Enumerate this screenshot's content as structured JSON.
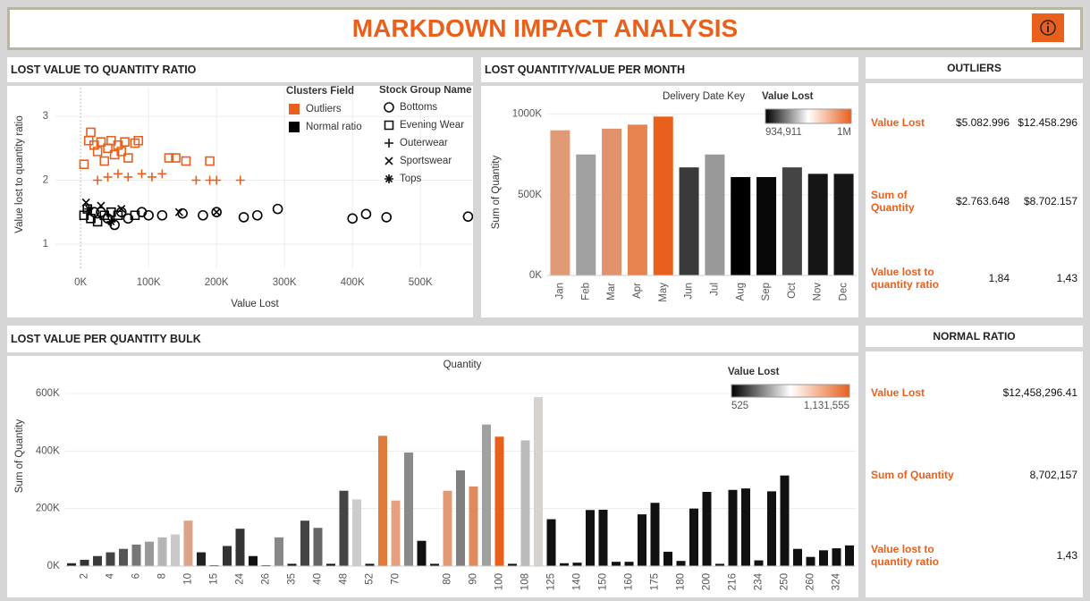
{
  "header": {
    "title": "MARKDOWN IMPACT ANALYSIS"
  },
  "chart_data": [
    {
      "type": "scatter",
      "title": "LOST VALUE TO QUANTITY RATIO",
      "xlabel": "Value Lost",
      "ylabel": "Value lost to quantity ratio",
      "xlim": [
        -37000,
        576000
      ],
      "ylim": [
        0.62,
        3.45
      ],
      "xticks": [
        {
          "value": 0,
          "label": "0K"
        },
        {
          "value": 100000,
          "label": "100K"
        },
        {
          "value": 200000,
          "label": "200K"
        },
        {
          "value": 300000,
          "label": "300K"
        },
        {
          "value": 400000,
          "label": "400K"
        },
        {
          "value": 500000,
          "label": "500K"
        }
      ],
      "yticks": [
        1,
        2,
        3
      ],
      "grid": true,
      "legend_title": "Clusters Field",
      "shape_legend_title": "Stock Group Name",
      "stock_groups": [
        "Bottoms",
        "Evening Wear",
        "Outerwear",
        "Sportswear",
        "Tops"
      ],
      "series": [
        {
          "name": "Outliers",
          "color": "#e8601c",
          "x": [
            5000,
            12000,
            15000,
            20000,
            25000,
            30000,
            35000,
            40000,
            45000,
            50000,
            55000,
            60000,
            65000,
            70000,
            80000,
            85000,
            130000,
            140000,
            155000,
            190000,
            25000,
            40000,
            55000,
            70000,
            90000,
            105000,
            120000,
            170000,
            190000,
            200000,
            235000
          ],
          "values": [
            2.25,
            2.62,
            2.75,
            2.55,
            2.45,
            2.6,
            2.3,
            2.5,
            2.62,
            2.4,
            2.55,
            2.45,
            2.6,
            2.35,
            2.58,
            2.62,
            2.35,
            2.35,
            2.3,
            2.3,
            2.0,
            2.05,
            2.1,
            2.05,
            2.1,
            2.05,
            2.1,
            2.0,
            2.0,
            2.0,
            2.0
          ],
          "groups": [
            1,
            1,
            1,
            1,
            1,
            1,
            1,
            1,
            1,
            1,
            1,
            1,
            1,
            1,
            1,
            1,
            1,
            1,
            1,
            1,
            2,
            2,
            2,
            2,
            2,
            2,
            2,
            2,
            2,
            2,
            2
          ]
        },
        {
          "name": "Normal ratio",
          "color": "#000000",
          "x": [
            5000,
            10000,
            15000,
            20000,
            25000,
            30000,
            35000,
            40000,
            45000,
            50000,
            55000,
            60000,
            70000,
            80000,
            90000,
            100000,
            120000,
            150000,
            180000,
            200000,
            240000,
            260000,
            290000,
            400000,
            420000,
            450000,
            570000,
            8000,
            30000,
            60000,
            145000,
            200000,
            12000,
            45000
          ],
          "values": [
            1.45,
            1.55,
            1.4,
            1.5,
            1.35,
            1.5,
            1.45,
            1.4,
            1.5,
            1.3,
            1.45,
            1.5,
            1.4,
            1.45,
            1.5,
            1.45,
            1.45,
            1.48,
            1.45,
            1.5,
            1.42,
            1.45,
            1.55,
            1.4,
            1.47,
            1.42,
            1.43,
            1.65,
            1.6,
            1.55,
            1.5,
            1.5,
            1.55,
            1.35
          ],
          "groups": [
            1,
            1,
            1,
            0,
            1,
            0,
            1,
            0,
            1,
            0,
            1,
            0,
            0,
            1,
            0,
            0,
            0,
            0,
            0,
            0,
            0,
            0,
            0,
            0,
            0,
            0,
            0,
            3,
            3,
            3,
            3,
            3,
            4,
            4
          ]
        }
      ]
    },
    {
      "type": "bar",
      "title": "LOST QUANTITY/VALUE PER MONTH",
      "xlabel": "Delivery Date Key",
      "ylabel": "Sum of Quantity",
      "categories": [
        "Jan",
        "Feb",
        "Mar",
        "Apr",
        "May",
        "Jun",
        "Jul",
        "Aug",
        "Sep",
        "Oct",
        "Nov",
        "Dec"
      ],
      "values": [
        900000,
        750000,
        910000,
        935000,
        985000,
        670000,
        750000,
        610000,
        610000,
        670000,
        630000,
        630000
      ],
      "colors": [
        "#e09a76",
        "#a0a0a0",
        "#e0926c",
        "#e5844e",
        "#e8601c",
        "#3a3a3a",
        "#999999",
        "#000000",
        "#080808",
        "#444444",
        "#151515",
        "#151515"
      ],
      "ylim": [
        0,
        1070000
      ],
      "yticks": [
        {
          "value": 0,
          "label": "0K"
        },
        {
          "value": 500000,
          "label": "500K"
        },
        {
          "value": 1000000,
          "label": "1000K"
        }
      ],
      "legend": {
        "title": "Value Lost",
        "colorscale": [
          "#000000",
          "#ffffff",
          "#e8601c"
        ],
        "min": {
          "value": 934911,
          "label": "934,911"
        },
        "max": {
          "value": 1000000,
          "label": "1M"
        }
      }
    },
    {
      "type": "bar",
      "title": "LOST VALUE PER QUANTITY BULK",
      "xlabel": "Quantity",
      "ylabel": "Sum of Quantity",
      "categories": [
        null,
        "2",
        null,
        "4",
        null,
        "6",
        null,
        "8",
        null,
        "10",
        null,
        "15",
        null,
        "24",
        null,
        "26",
        null,
        "35",
        null,
        "40",
        null,
        "48",
        null,
        "52",
        null,
        "70",
        null,
        null,
        null,
        "80",
        null,
        "90",
        null,
        "100",
        null,
        "108",
        null,
        "125",
        null,
        "140",
        null,
        "150",
        null,
        "160",
        null,
        "175",
        null,
        "180",
        null,
        "200",
        null,
        "216",
        null,
        "234",
        null,
        "250",
        null,
        "260",
        null,
        "324",
        null
      ],
      "values": [
        10000,
        22000,
        35000,
        48000,
        60000,
        75000,
        85000,
        100000,
        110000,
        158000,
        48000,
        3000,
        70000,
        130000,
        35000,
        3000,
        100000,
        8000,
        158000,
        133000,
        8000,
        262000,
        232000,
        8000,
        453000,
        228000,
        395000,
        88000,
        8000,
        262000,
        333000,
        277000,
        492000,
        450000,
        8000,
        437000,
        588000,
        163000,
        10000,
        12000,
        195000,
        196000,
        15000,
        15000,
        180000,
        220000,
        50000,
        18000,
        200000,
        258000,
        8000,
        265000,
        270000,
        20000,
        260000,
        315000,
        60000,
        32000,
        55000,
        62000,
        72000
      ],
      "colors": [
        "#222222",
        "#333333",
        "#3a3a3a",
        "#444444",
        "#555555",
        "#777777",
        "#999999",
        "#b5b5b5",
        "#c8c8c8",
        "#dba48a",
        "#222222",
        "#111111",
        "#333333",
        "#333333",
        "#111111",
        "#111111",
        "#888888",
        "#111111",
        "#444444",
        "#666666",
        "#111111",
        "#444444",
        "#cccccc",
        "#111111",
        "#e07b3c",
        "#e5a07f",
        "#8a8a8a",
        "#111111",
        "#111111",
        "#e29a76",
        "#808080",
        "#e08a5a",
        "#a0a0a0",
        "#e8601c",
        "#111111",
        "#bbbbbb",
        "#d6d2d0",
        "#111111",
        "#111111",
        "#111111",
        "#111111",
        "#111111",
        "#111111",
        "#111111",
        "#111111",
        "#111111",
        "#111111",
        "#111111",
        "#111111",
        "#111111",
        "#111111",
        "#111111",
        "#111111",
        "#111111",
        "#111111",
        "#111111",
        "#111111",
        "#111111",
        "#111111",
        "#111111",
        "#111111"
      ],
      "ylim": [
        0,
        660000
      ],
      "yticks": [
        {
          "value": 0,
          "label": "0K"
        },
        {
          "value": 200000,
          "label": "200K"
        },
        {
          "value": 400000,
          "label": "400K"
        },
        {
          "value": 600000,
          "label": "600K"
        }
      ],
      "legend": {
        "title": "Value Lost",
        "colorscale": [
          "#000000",
          "#ffffff",
          "#e8601c"
        ],
        "min": {
          "value": 525,
          "label": "525"
        },
        "max": {
          "value": 1131555,
          "label": "1,131,555"
        }
      }
    }
  ],
  "outliers": {
    "title": "OUTLIERS",
    "rows": [
      {
        "label": "Value Lost",
        "values": [
          "$5.082.996",
          "$12.458.296"
        ]
      },
      {
        "label": "Sum of Quantity",
        "values": [
          "$2.763.648",
          "$8.702.157"
        ]
      },
      {
        "label": "Value lost to quantity ratio",
        "values": [
          "1,84",
          "1,43"
        ]
      }
    ]
  },
  "normal_ratio": {
    "title": "NORMAL RATIO",
    "rows": [
      {
        "label": "Value Lost",
        "value": "$12,458,296.41"
      },
      {
        "label": "Sum of Quantity",
        "value": "8,702,157"
      },
      {
        "label": "Value lost to quantity ratio",
        "value": "1,43"
      }
    ]
  }
}
